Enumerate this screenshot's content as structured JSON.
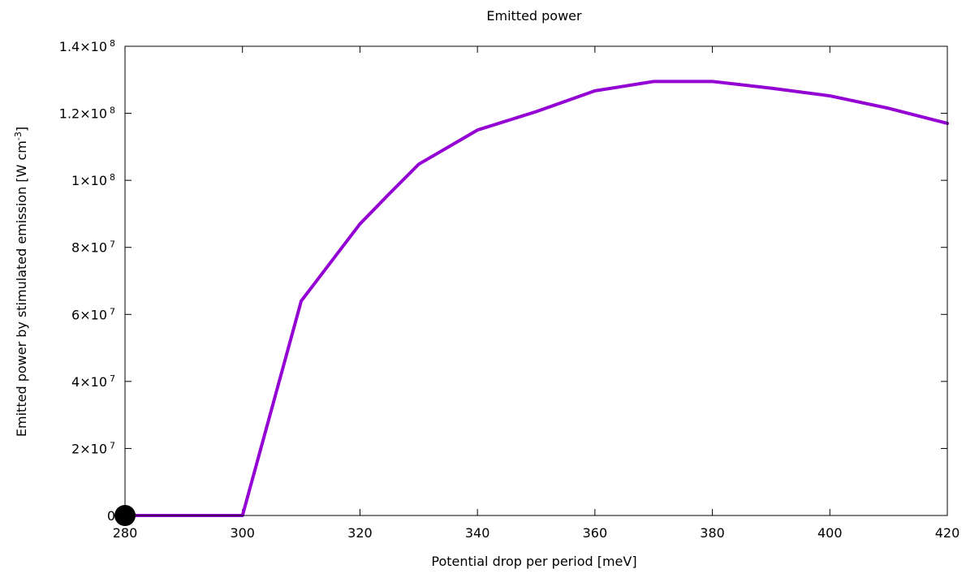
{
  "chart_data": {
    "type": "line",
    "title": "Emitted power",
    "xlabel": "Potential drop per period [meV]",
    "ylabel": {
      "prefix": "Emitted power by stimulated emission [W cm",
      "exponent": "-3",
      "suffix": "]"
    },
    "xlim": [
      280,
      420
    ],
    "ylim": [
      0,
      140000000
    ],
    "x_ticks": [
      280,
      300,
      320,
      340,
      360,
      380,
      400,
      420
    ],
    "y_ticks": [
      {
        "value": 0,
        "mantissa": "0",
        "exponent": ""
      },
      {
        "value": 20000000,
        "mantissa": "2×10",
        "exponent": "7"
      },
      {
        "value": 40000000,
        "mantissa": "4×10",
        "exponent": "7"
      },
      {
        "value": 60000000,
        "mantissa": "6×10",
        "exponent": "7"
      },
      {
        "value": 80000000,
        "mantissa": "8×10",
        "exponent": "7"
      },
      {
        "value": 100000000,
        "mantissa": "1×10",
        "exponent": "8"
      },
      {
        "value": 120000000,
        "mantissa": "1.2×10",
        "exponent": "8"
      },
      {
        "value": 140000000,
        "mantissa": "1.4×10",
        "exponent": "8"
      }
    ],
    "grid": false,
    "series": [
      {
        "color": "#9400d3",
        "x": [
          280,
          290,
          300,
          310,
          320,
          325,
          330,
          340,
          350,
          360,
          370,
          380,
          390,
          400,
          410,
          420
        ],
        "y": [
          0,
          0,
          0,
          64000000,
          87000000,
          96000000,
          104800000,
          115000000,
          120500000,
          126700000,
          129500000,
          129500000,
          127500000,
          125200000,
          121500000,
          117000000
        ]
      }
    ],
    "marker": {
      "x": 280,
      "y": 0,
      "color": "#000000"
    }
  }
}
